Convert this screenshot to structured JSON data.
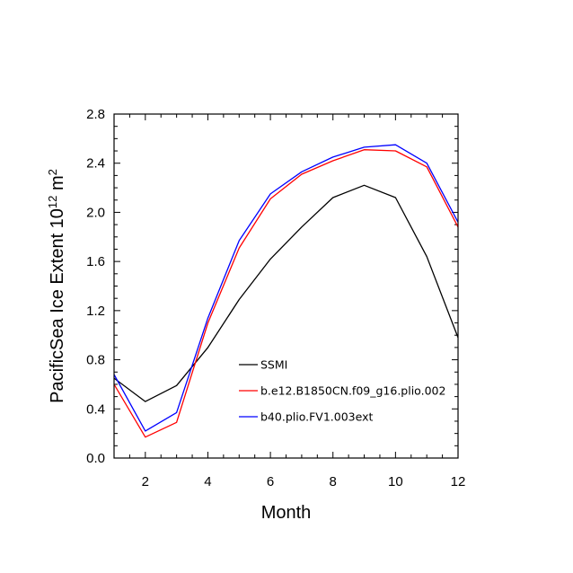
{
  "chart_data": {
    "type": "line",
    "title": "",
    "xlabel": "Month",
    "ylabel_main": "PacificSea Ice Extent 10",
    "ylabel_exp1": "12",
    "ylabel_unit": " m",
    "ylabel_exp2": "2",
    "xlim": [
      1,
      12
    ],
    "ylim": [
      0.0,
      2.8
    ],
    "x_ticks": [
      2,
      4,
      6,
      8,
      10,
      12
    ],
    "x_tick_labels": [
      "2",
      "4",
      "6",
      "8",
      "10",
      "12"
    ],
    "y_ticks": [
      0.0,
      0.4,
      0.8,
      1.2,
      1.6,
      2.0,
      2.4,
      2.8
    ],
    "y_tick_labels": [
      "0.0",
      "0.4",
      "0.8",
      "1.2",
      "1.6",
      "2.0",
      "2.4",
      "2.8"
    ],
    "x": [
      1,
      2,
      3,
      4,
      5,
      6,
      7,
      8,
      9,
      10,
      11,
      12
    ],
    "series": [
      {
        "name": "SSMI",
        "color": "#000000",
        "values": [
          0.65,
          0.46,
          0.59,
          0.9,
          1.29,
          1.62,
          1.88,
          2.12,
          2.22,
          2.12,
          1.64,
          0.98
        ]
      },
      {
        "name": "b.e12.B1850CN.f09_g16.plio.002",
        "color": "#ff0000",
        "values": [
          0.6,
          0.17,
          0.29,
          1.1,
          1.71,
          2.11,
          2.31,
          2.42,
          2.51,
          2.5,
          2.37,
          1.88
        ]
      },
      {
        "name": "b40.plio.FV1.003ext",
        "color": "#0000ff",
        "values": [
          0.68,
          0.22,
          0.37,
          1.14,
          1.77,
          2.15,
          2.33,
          2.45,
          2.53,
          2.55,
          2.4,
          1.92
        ]
      }
    ],
    "legend_position": "center",
    "grid": false
  }
}
